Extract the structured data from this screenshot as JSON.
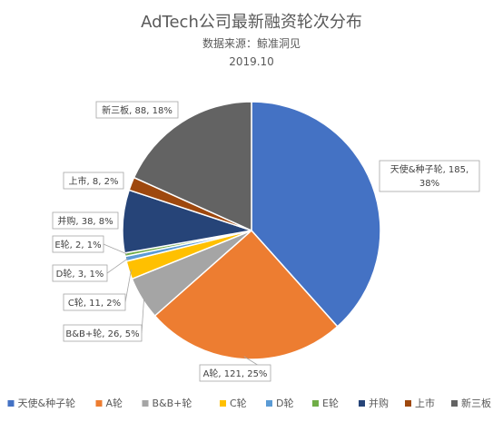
{
  "chart_data": {
    "type": "pie",
    "title": "AdTech公司最新融资轮次分布",
    "subtitle": "数据来源：鲸准洞见",
    "date": "2019.10",
    "categories": [
      "天使&种子轮",
      "A轮",
      "B&B+轮",
      "C轮",
      "D轮",
      "E轮",
      "并购",
      "上市",
      "新三板"
    ],
    "values": [
      185,
      121,
      26,
      11,
      3,
      2,
      38,
      8,
      88
    ],
    "percents": [
      "38%",
      "25%",
      "5%",
      "2%",
      "1%",
      "1%",
      "8%",
      "2%",
      "18%"
    ],
    "data_labels": [
      [
        "天使&种子轮, 185,",
        "38%"
      ],
      [
        "A轮, 121, 25%"
      ],
      [
        "B&B+轮, 26, 5%"
      ],
      [
        "C轮, 11, 2%"
      ],
      [
        "D轮, 3, 1%"
      ],
      [
        "E轮, 2, 1%"
      ],
      [
        "并购, 38, 8%"
      ],
      [
        "上市, 8, 2%"
      ],
      [
        "新三板, 88, 18%"
      ]
    ],
    "colors": [
      "#4472C4",
      "#ED7D31",
      "#A5A5A5",
      "#FFC000",
      "#5B9BD5",
      "#70AD47",
      "#264478",
      "#9E480E",
      "#636363"
    ],
    "legend_position": "bottom"
  }
}
